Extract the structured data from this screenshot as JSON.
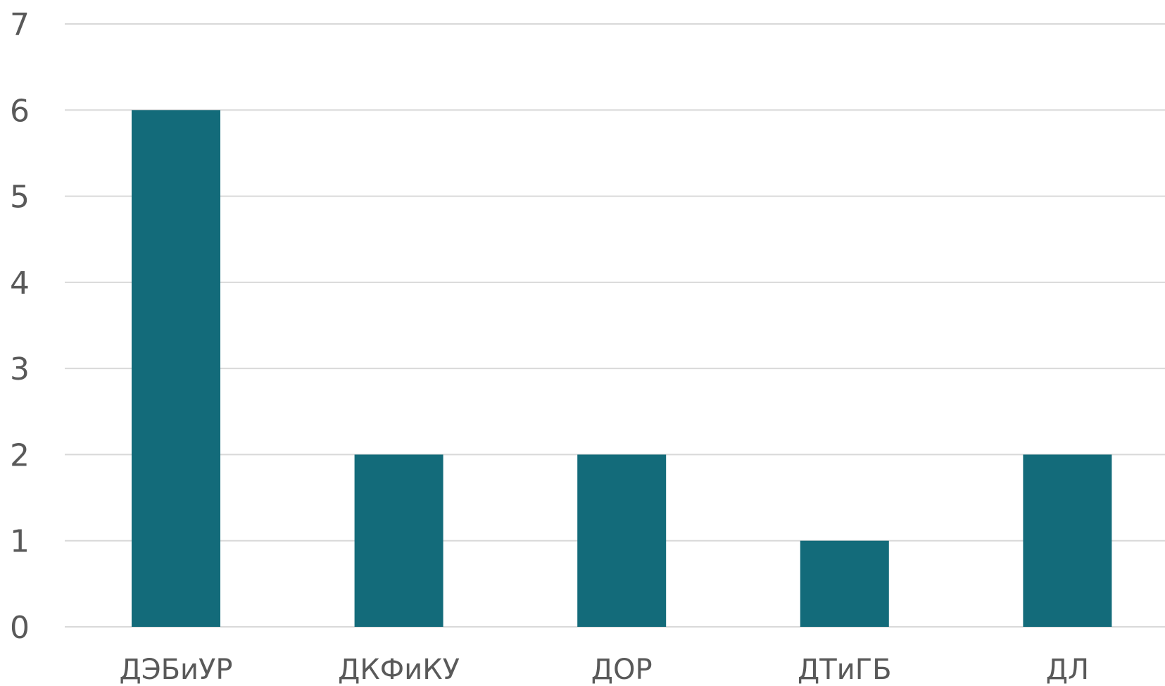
{
  "chart_data": {
    "type": "bar",
    "categories": [
      "ДЭБиУР",
      "ДКФиКУ",
      "ДОР",
      "ДТиГБ",
      "ДЛ"
    ],
    "values": [
      6,
      2,
      2,
      1,
      2
    ],
    "title": "",
    "xlabel": "",
    "ylabel": "",
    "ylim": [
      0,
      7
    ],
    "yticks": [
      0,
      1,
      2,
      3,
      4,
      5,
      6,
      7
    ],
    "grid": true,
    "legend": "none",
    "bar_color": "#136b7a",
    "grid_color": "#d9d9d9",
    "label_color": "#595959"
  }
}
